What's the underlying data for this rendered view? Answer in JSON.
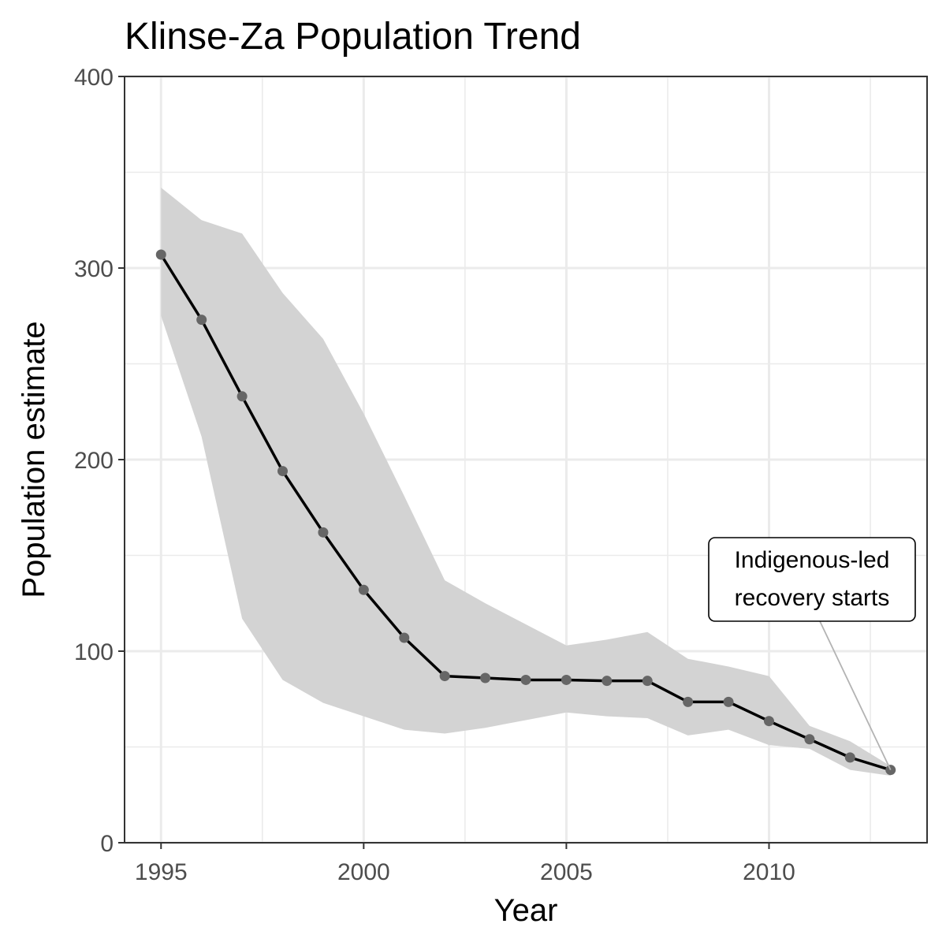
{
  "chart_data": {
    "type": "line",
    "title": "Klinse-Za Population Trend",
    "xlabel": "Year",
    "ylabel": "Population estimate",
    "xlim": [
      1994.1,
      2013.9
    ],
    "ylim": [
      0,
      400
    ],
    "x_ticks": [
      1995,
      2000,
      2005,
      2010
    ],
    "x_tick_labels": [
      "1995",
      "2000",
      "2005",
      "2010"
    ],
    "y_ticks": [
      0,
      100,
      200,
      300,
      400
    ],
    "y_tick_labels": [
      "0",
      "100",
      "200",
      "300",
      "400"
    ],
    "grid": true,
    "x": [
      1995,
      1996,
      1997,
      1998,
      1999,
      2000,
      2001,
      2002,
      2003,
      2004,
      2005,
      2006,
      2007,
      2008,
      2009,
      2010,
      2011,
      2012,
      2013
    ],
    "series": [
      {
        "values": [
          307,
          273,
          233,
          194,
          162,
          132,
          107,
          87,
          86,
          85,
          85,
          84.5,
          84.5,
          73.5,
          73.5,
          63.5,
          54,
          44.5,
          38
        ]
      }
    ],
    "ribbon": {
      "lower": [
        275,
        212,
        117,
        85,
        73,
        66,
        59,
        57,
        60,
        64,
        68,
        66,
        65,
        56,
        59,
        51,
        49,
        38,
        35
      ],
      "upper": [
        342,
        325,
        318,
        287,
        263,
        224,
        181,
        137,
        125,
        114,
        103,
        106,
        110,
        96,
        92,
        87,
        61,
        53,
        40
      ]
    },
    "annotation": {
      "lines": [
        "Indigenous-led",
        "recovery starts"
      ],
      "point_x": 2013,
      "point_y": 38
    },
    "colors": {
      "line": "#000000",
      "points": "#666666",
      "ribbon": "#d3d3d3",
      "grid": "#ebebeb",
      "panel_border": "#333333"
    }
  }
}
